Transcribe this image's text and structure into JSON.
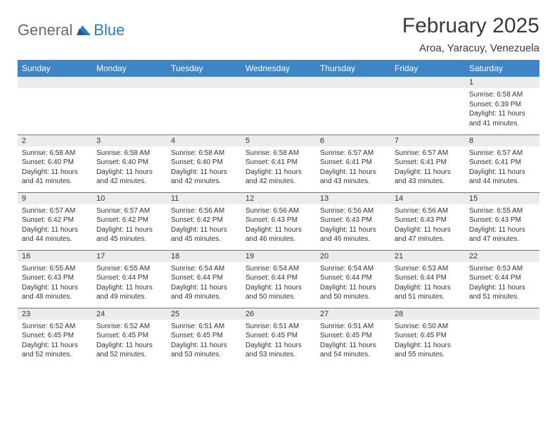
{
  "logo": {
    "text1": "General",
    "text2": "Blue"
  },
  "title": "February 2025",
  "location": "Aroa, Yaracuy, Venezuela",
  "colors": {
    "header_bg": "#3d85c6",
    "header_text": "#ffffff",
    "daynum_bg": "#ececec",
    "row_border": "#5b7ba0",
    "logo_gray": "#6a6a6a",
    "logo_blue": "#2b7bbf",
    "text": "#333333"
  },
  "weekdays": [
    "Sunday",
    "Monday",
    "Tuesday",
    "Wednesday",
    "Thursday",
    "Friday",
    "Saturday"
  ],
  "cells": [
    [
      {
        "n": "",
        "sr": "",
        "ss": "",
        "dl": ""
      },
      {
        "n": "",
        "sr": "",
        "ss": "",
        "dl": ""
      },
      {
        "n": "",
        "sr": "",
        "ss": "",
        "dl": ""
      },
      {
        "n": "",
        "sr": "",
        "ss": "",
        "dl": ""
      },
      {
        "n": "",
        "sr": "",
        "ss": "",
        "dl": ""
      },
      {
        "n": "",
        "sr": "",
        "ss": "",
        "dl": ""
      },
      {
        "n": "1",
        "sr": "Sunrise: 6:58 AM",
        "ss": "Sunset: 6:39 PM",
        "dl": "Daylight: 11 hours and 41 minutes."
      }
    ],
    [
      {
        "n": "2",
        "sr": "Sunrise: 6:58 AM",
        "ss": "Sunset: 6:40 PM",
        "dl": "Daylight: 11 hours and 41 minutes."
      },
      {
        "n": "3",
        "sr": "Sunrise: 6:58 AM",
        "ss": "Sunset: 6:40 PM",
        "dl": "Daylight: 11 hours and 42 minutes."
      },
      {
        "n": "4",
        "sr": "Sunrise: 6:58 AM",
        "ss": "Sunset: 6:40 PM",
        "dl": "Daylight: 11 hours and 42 minutes."
      },
      {
        "n": "5",
        "sr": "Sunrise: 6:58 AM",
        "ss": "Sunset: 6:41 PM",
        "dl": "Daylight: 11 hours and 42 minutes."
      },
      {
        "n": "6",
        "sr": "Sunrise: 6:57 AM",
        "ss": "Sunset: 6:41 PM",
        "dl": "Daylight: 11 hours and 43 minutes."
      },
      {
        "n": "7",
        "sr": "Sunrise: 6:57 AM",
        "ss": "Sunset: 6:41 PM",
        "dl": "Daylight: 11 hours and 43 minutes."
      },
      {
        "n": "8",
        "sr": "Sunrise: 6:57 AM",
        "ss": "Sunset: 6:41 PM",
        "dl": "Daylight: 11 hours and 44 minutes."
      }
    ],
    [
      {
        "n": "9",
        "sr": "Sunrise: 6:57 AM",
        "ss": "Sunset: 6:42 PM",
        "dl": "Daylight: 11 hours and 44 minutes."
      },
      {
        "n": "10",
        "sr": "Sunrise: 6:57 AM",
        "ss": "Sunset: 6:42 PM",
        "dl": "Daylight: 11 hours and 45 minutes."
      },
      {
        "n": "11",
        "sr": "Sunrise: 6:56 AM",
        "ss": "Sunset: 6:42 PM",
        "dl": "Daylight: 11 hours and 45 minutes."
      },
      {
        "n": "12",
        "sr": "Sunrise: 6:56 AM",
        "ss": "Sunset: 6:43 PM",
        "dl": "Daylight: 11 hours and 46 minutes."
      },
      {
        "n": "13",
        "sr": "Sunrise: 6:56 AM",
        "ss": "Sunset: 6:43 PM",
        "dl": "Daylight: 11 hours and 46 minutes."
      },
      {
        "n": "14",
        "sr": "Sunrise: 6:56 AM",
        "ss": "Sunset: 6:43 PM",
        "dl": "Daylight: 11 hours and 47 minutes."
      },
      {
        "n": "15",
        "sr": "Sunrise: 6:55 AM",
        "ss": "Sunset: 6:43 PM",
        "dl": "Daylight: 11 hours and 47 minutes."
      }
    ],
    [
      {
        "n": "16",
        "sr": "Sunrise: 6:55 AM",
        "ss": "Sunset: 6:43 PM",
        "dl": "Daylight: 11 hours and 48 minutes."
      },
      {
        "n": "17",
        "sr": "Sunrise: 6:55 AM",
        "ss": "Sunset: 6:44 PM",
        "dl": "Daylight: 11 hours and 49 minutes."
      },
      {
        "n": "18",
        "sr": "Sunrise: 6:54 AM",
        "ss": "Sunset: 6:44 PM",
        "dl": "Daylight: 11 hours and 49 minutes."
      },
      {
        "n": "19",
        "sr": "Sunrise: 6:54 AM",
        "ss": "Sunset: 6:44 PM",
        "dl": "Daylight: 11 hours and 50 minutes."
      },
      {
        "n": "20",
        "sr": "Sunrise: 6:54 AM",
        "ss": "Sunset: 6:44 PM",
        "dl": "Daylight: 11 hours and 50 minutes."
      },
      {
        "n": "21",
        "sr": "Sunrise: 6:53 AM",
        "ss": "Sunset: 6:44 PM",
        "dl": "Daylight: 11 hours and 51 minutes."
      },
      {
        "n": "22",
        "sr": "Sunrise: 6:53 AM",
        "ss": "Sunset: 6:44 PM",
        "dl": "Daylight: 11 hours and 51 minutes."
      }
    ],
    [
      {
        "n": "23",
        "sr": "Sunrise: 6:52 AM",
        "ss": "Sunset: 6:45 PM",
        "dl": "Daylight: 11 hours and 52 minutes."
      },
      {
        "n": "24",
        "sr": "Sunrise: 6:52 AM",
        "ss": "Sunset: 6:45 PM",
        "dl": "Daylight: 11 hours and 52 minutes."
      },
      {
        "n": "25",
        "sr": "Sunrise: 6:51 AM",
        "ss": "Sunset: 6:45 PM",
        "dl": "Daylight: 11 hours and 53 minutes."
      },
      {
        "n": "26",
        "sr": "Sunrise: 6:51 AM",
        "ss": "Sunset: 6:45 PM",
        "dl": "Daylight: 11 hours and 53 minutes."
      },
      {
        "n": "27",
        "sr": "Sunrise: 6:51 AM",
        "ss": "Sunset: 6:45 PM",
        "dl": "Daylight: 11 hours and 54 minutes."
      },
      {
        "n": "28",
        "sr": "Sunrise: 6:50 AM",
        "ss": "Sunset: 6:45 PM",
        "dl": "Daylight: 11 hours and 55 minutes."
      },
      {
        "n": "",
        "sr": "",
        "ss": "",
        "dl": ""
      }
    ]
  ]
}
